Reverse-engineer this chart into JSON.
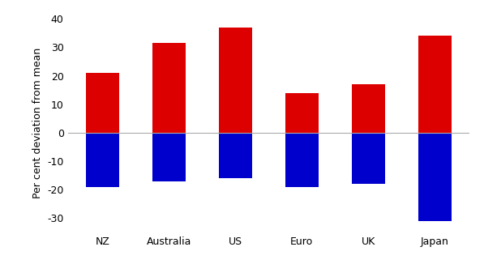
{
  "categories": [
    "NZ",
    "Australia",
    "US",
    "Euro",
    "UK",
    "Japan"
  ],
  "positive_values": [
    21,
    31.5,
    37,
    14,
    17,
    34
  ],
  "negative_values": [
    -19,
    -17,
    -16,
    -19,
    -18,
    -31
  ],
  "positive_color": "#dd0000",
  "negative_color": "#0000cc",
  "ylabel": "Per cent deviation from mean",
  "ylim": [
    -35,
    42
  ],
  "yticks": [
    -30,
    -20,
    -10,
    0,
    10,
    20,
    30,
    40
  ],
  "background_color": "#ffffff",
  "bar_width": 0.5,
  "zero_line_color": "#aaaaaa",
  "spine_color": "#aaaaaa"
}
